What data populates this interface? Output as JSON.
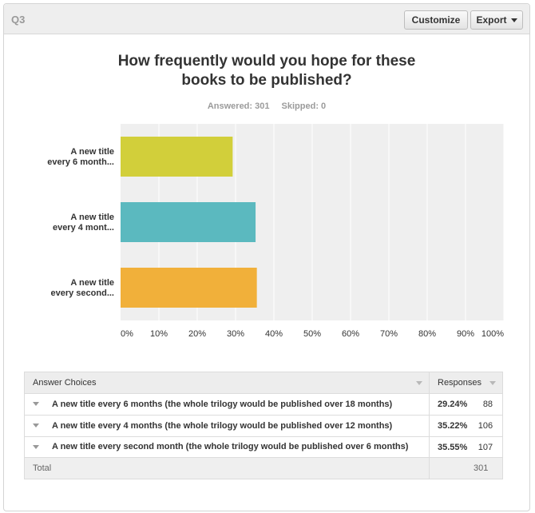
{
  "header": {
    "question_label": "Q3",
    "customize_label": "Customize",
    "export_label": "Export"
  },
  "question": {
    "title_line1": "How frequently would you hope for these",
    "title_line2": "books to be published?",
    "answered": "Answered: 301",
    "skipped": "Skipped: 0"
  },
  "chart_data": {
    "type": "bar",
    "orientation": "horizontal",
    "categories": [
      [
        "A new title",
        "every 6 month..."
      ],
      [
        "A new title",
        "every 4 mont..."
      ],
      [
        "A new title",
        "every second..."
      ]
    ],
    "values": [
      29.24,
      35.22,
      35.55
    ],
    "colors": [
      "#d2cf3a",
      "#5bb9bf",
      "#f1b03a"
    ],
    "x_ticks": [
      "0%",
      "10%",
      "20%",
      "30%",
      "40%",
      "50%",
      "60%",
      "70%",
      "80%",
      "90%",
      "100%"
    ],
    "xlim": [
      0,
      100
    ],
    "grid": true
  },
  "table": {
    "headers": [
      "Answer Choices",
      "Responses"
    ],
    "rows": [
      {
        "choice": "A new title every 6 months (the whole trilogy would be published over 18 months)",
        "percent": "29.24%",
        "count": "88"
      },
      {
        "choice": "A new title every 4 months (the whole trilogy would be published over 12 months)",
        "percent": "35.22%",
        "count": "106"
      },
      {
        "choice": "A new title every second month (the whole trilogy would be published over 6 months)",
        "percent": "35.55%",
        "count": "107"
      }
    ],
    "total_label": "Total",
    "total_value": "301"
  }
}
